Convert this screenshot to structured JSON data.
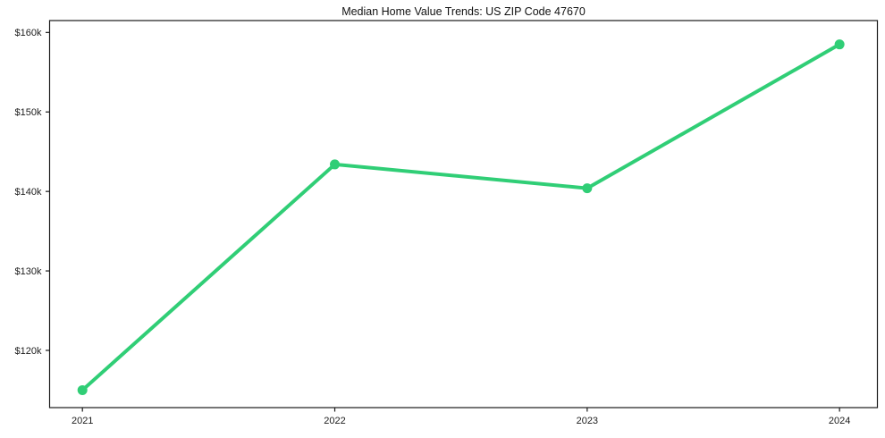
{
  "figure": {
    "background": "#ffffff"
  },
  "chart_data": {
    "type": "line",
    "title": "Median Home Value Trends: US ZIP Code 47670",
    "x": [
      2021,
      2022,
      2023,
      2024
    ],
    "x_tick_labels": [
      "2021",
      "2022",
      "2023",
      "2024"
    ],
    "series": [
      {
        "name": "median-home-value",
        "values": [
          115000,
          143400,
          140400,
          158500
        ],
        "color": "#30ce76"
      }
    ],
    "y_ticks": [
      {
        "value": 120000,
        "label": "$120k"
      },
      {
        "value": 130000,
        "label": "$130k"
      },
      {
        "value": 140000,
        "label": "$140k"
      },
      {
        "value": 150000,
        "label": "$150k"
      },
      {
        "value": 160000,
        "label": "$160k"
      }
    ],
    "xlabel": "",
    "ylabel": "",
    "xlim": [
      2020.87,
      2024.15
    ],
    "ylim": [
      112800,
      161500
    ],
    "grid": false,
    "legend_position": "none",
    "axis_color": "#1a1a1a",
    "tick_label_color": "#1c1c1c",
    "title_color": "#111111"
  }
}
